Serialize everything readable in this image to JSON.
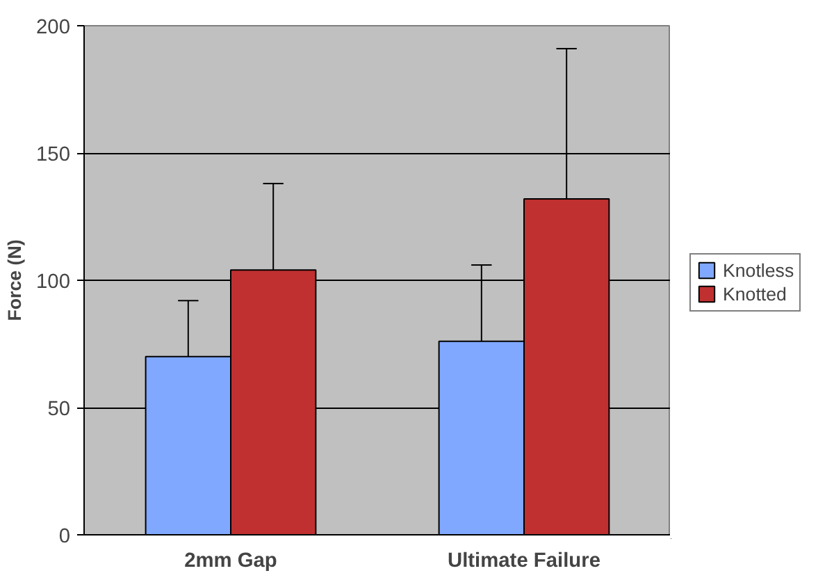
{
  "chart_data": {
    "type": "bar",
    "ylabel": "Force (N)",
    "categories": [
      "2mm Gap",
      "Ultimate Failure"
    ],
    "series": [
      {
        "name": "Knotless",
        "color": "#80a8ff",
        "values": [
          70,
          76
        ],
        "errors": [
          [
            70,
            92
          ],
          [
            76,
            106
          ]
        ]
      },
      {
        "name": "Knotted",
        "color": "#c03030",
        "values": [
          104,
          132
        ],
        "errors": [
          [
            104,
            138
          ],
          [
            132,
            191
          ]
        ]
      }
    ],
    "ylim": [
      0,
      200
    ],
    "yticks": [
      0,
      50,
      100,
      150,
      200
    ],
    "grid": "y",
    "legend": "right"
  }
}
